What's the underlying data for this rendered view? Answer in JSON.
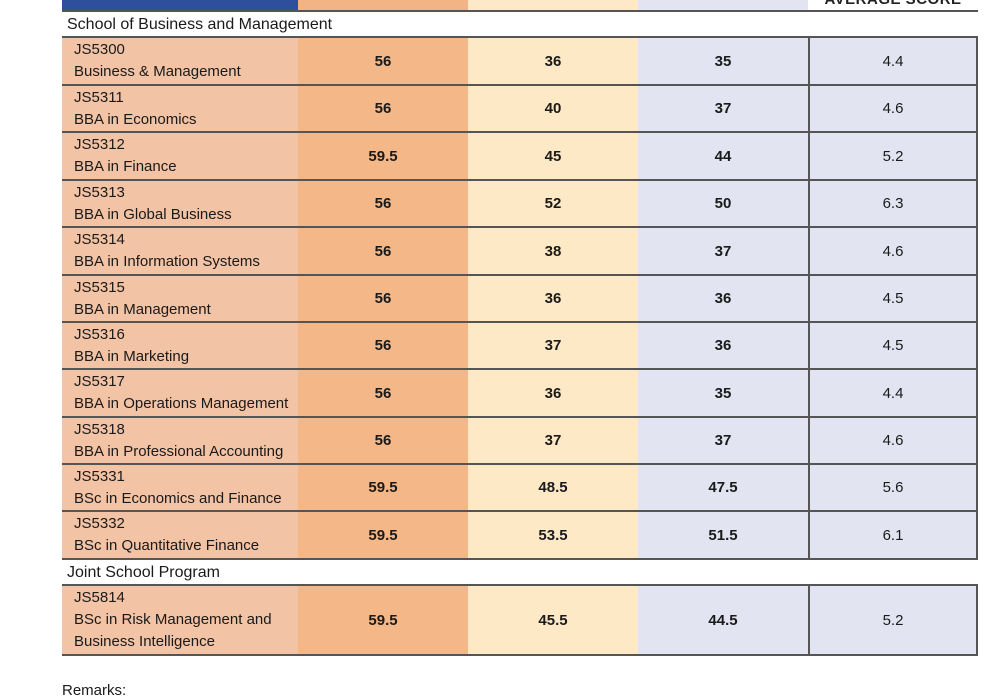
{
  "header": {
    "average_score_label": "AVERAGE SCORE"
  },
  "sections": [
    {
      "title": "School of Business and Management",
      "rows": [
        {
          "code": "JS5300",
          "program": "Business & Management",
          "col1": "56",
          "col2": "36",
          "col3": "35",
          "avg": "4.4"
        },
        {
          "code": "JS5311",
          "program": "BBA in Economics",
          "col1": "56",
          "col2": "40",
          "col3": "37",
          "avg": "4.6"
        },
        {
          "code": "JS5312",
          "program": "BBA in Finance",
          "col1": "59.5",
          "col2": "45",
          "col3": "44",
          "avg": "5.2"
        },
        {
          "code": "JS5313",
          "program": "BBA in Global Business",
          "col1": "56",
          "col2": "52",
          "col3": "50",
          "avg": "6.3"
        },
        {
          "code": "JS5314",
          "program": "BBA in Information  Systems",
          "col1": "56",
          "col2": "38",
          "col3": "37",
          "avg": "4.6"
        },
        {
          "code": "JS5315",
          "program": "BBA in Management",
          "col1": "56",
          "col2": "36",
          "col3": "36",
          "avg": "4.5"
        },
        {
          "code": "JS5316",
          "program": "BBA in Marketing",
          "col1": "56",
          "col2": "37",
          "col3": "36",
          "avg": "4.5"
        },
        {
          "code": "JS5317",
          "program": "BBA in Operations Management",
          "col1": "56",
          "col2": "36",
          "col3": "35",
          "avg": "4.4"
        },
        {
          "code": "JS5318",
          "program": "BBA in Professional Accounting",
          "col1": "56",
          "col2": "37",
          "col3": "37",
          "avg": "4.6"
        },
        {
          "code": "JS5331",
          "program": "BSc in Economics and Finance",
          "col1": "59.5",
          "col2": "48.5",
          "col3": "47.5",
          "avg": "5.6"
        },
        {
          "code": "JS5332",
          "program": "BSc in Quantitative Finance",
          "col1": "59.5",
          "col2": "53.5",
          "col3": "51.5",
          "avg": "6.1"
        }
      ]
    },
    {
      "title": "Joint School Program",
      "rows": [
        {
          "code": "JS5814",
          "program": "BSc in Risk Management and",
          "program2": "Business Intelligence",
          "col1": "59.5",
          "col2": "45.5",
          "col3": "44.5",
          "avg": "5.2"
        }
      ]
    }
  ],
  "remarks_label": "Remarks:"
}
